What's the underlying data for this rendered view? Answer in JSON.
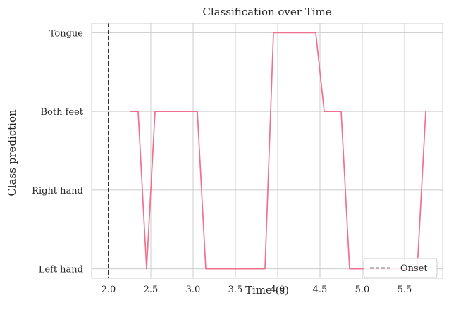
{
  "chart_data": {
    "type": "line",
    "title": "Classification over Time",
    "xlabel": "Time (s)",
    "ylabel": "Class prediction",
    "xlim": [
      1.8,
      5.95
    ],
    "ylim": [
      -0.12,
      3.12
    ],
    "xticks": [
      2.0,
      2.5,
      3.0,
      3.5,
      4.0,
      4.5,
      5.0,
      5.5
    ],
    "xtick_labels": [
      "2.0",
      "2.5",
      "3.0",
      "3.5",
      "4.0",
      "4.5",
      "5.0",
      "5.5"
    ],
    "yticks": [
      0,
      1,
      2,
      3
    ],
    "ytick_labels": [
      "Left hand",
      "Right hand",
      "Both feet",
      "Tongue"
    ],
    "grid": true,
    "series": [
      {
        "color": "#f07090",
        "x": [
          2.25,
          2.35,
          2.45,
          2.55,
          2.65,
          2.75,
          2.85,
          2.95,
          3.05,
          3.15,
          3.25,
          3.35,
          3.45,
          3.55,
          3.65,
          3.75,
          3.85,
          3.95,
          4.05,
          4.15,
          4.25,
          4.35,
          4.45,
          4.55,
          4.65,
          4.75,
          4.85,
          4.95,
          5.05,
          5.15,
          5.25,
          5.35,
          5.45,
          5.55,
          5.65,
          5.75
        ],
        "y": [
          2,
          2,
          0,
          2,
          2,
          2,
          2,
          2,
          2,
          0,
          0,
          0,
          0,
          0,
          0,
          0,
          0,
          3,
          3,
          3,
          3,
          3,
          3,
          2,
          2,
          2,
          0,
          0,
          0,
          0,
          0,
          0,
          0,
          0,
          0,
          2
        ]
      }
    ],
    "vlines": [
      {
        "x": 2.0,
        "label": "Onset",
        "color": "#000000",
        "style": "dashed"
      }
    ],
    "legend": {
      "position": "bottom-right",
      "entries": [
        "Onset"
      ]
    }
  }
}
